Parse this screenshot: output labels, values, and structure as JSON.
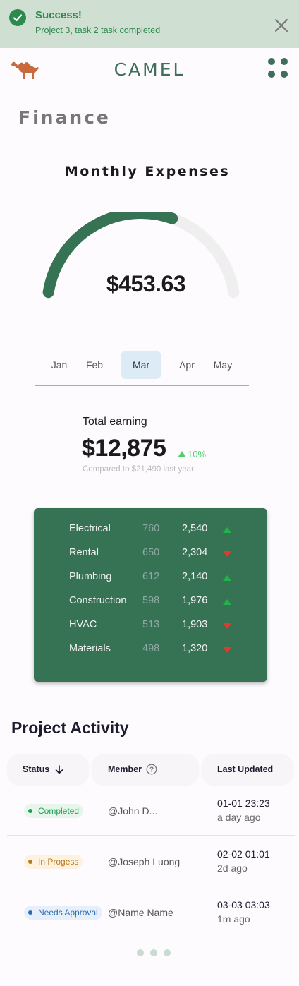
{
  "toast": {
    "title": "Success!",
    "message": "Project 3, task 2 task completed",
    "icon": "check-circle-icon",
    "close_icon": "close-icon"
  },
  "header": {
    "brand": "CAMEL",
    "logo_icon": "camel-icon",
    "menu_icon": "grid-dots-icon"
  },
  "page_title": "Finance",
  "gauge": {
    "title": "Monthly Expenses",
    "value": "$453.63",
    "fill_fraction": 0.62,
    "color_fill": "#367254",
    "color_track": "#efefef"
  },
  "months": {
    "items": [
      "Jan",
      "Feb",
      "Mar",
      "Apr",
      "May"
    ],
    "selected": "Mar"
  },
  "earning": {
    "label": "Total earning",
    "value": "$12,875",
    "change": "10%",
    "compare": "Compared to $21,490 last year"
  },
  "breakdown": [
    {
      "name": "Electrical",
      "count": "760",
      "value": "2,540",
      "trend": "up"
    },
    {
      "name": "Rental",
      "count": "650",
      "value": "2,304",
      "trend": "down"
    },
    {
      "name": "Plumbing",
      "count": "612",
      "value": "2,140",
      "trend": "up"
    },
    {
      "name": "Construction",
      "count": "598",
      "value": "1,976",
      "trend": "up"
    },
    {
      "name": "HVAC",
      "count": "513",
      "value": "1,903",
      "trend": "down"
    },
    {
      "name": "Materials",
      "count": "498",
      "value": "1,320",
      "trend": "down"
    }
  ],
  "activity": {
    "title": "Project Activity",
    "columns": {
      "status": "Status",
      "member": "Member",
      "updated": "Last Updated"
    },
    "rows": [
      {
        "status": "Completed",
        "status_color": "#1f9d55",
        "status_bg": "#e6f6ea",
        "member": "@John D...",
        "date": "01-01 23:23",
        "ago": "a day ago"
      },
      {
        "status": "In Progess",
        "status_color": "#b7791f",
        "status_bg": "#fdf1df",
        "member": "@Joseph Luong",
        "date": "02-02 01:01",
        "ago": "2d ago"
      },
      {
        "status": "Needs Approval",
        "status_color": "#2b6cb0",
        "status_bg": "#e6effa",
        "member": "@Name Name",
        "date": "03-03 03:03",
        "ago": "1m ago"
      }
    ]
  }
}
